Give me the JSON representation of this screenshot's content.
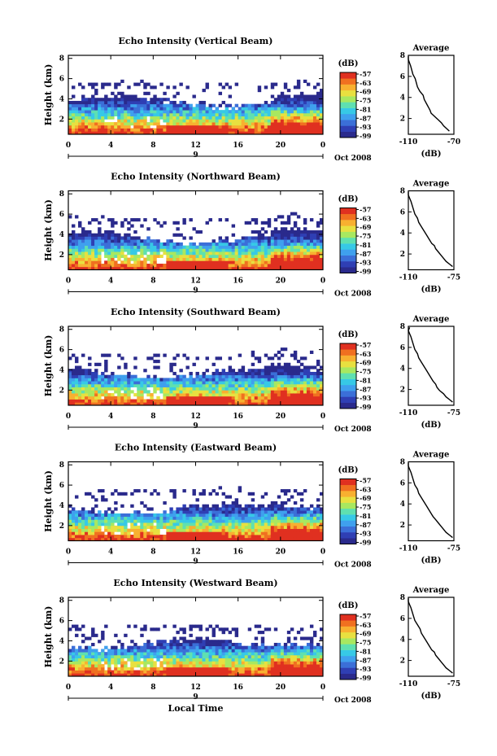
{
  "chart_data": [
    {
      "type": "heatmap",
      "title": "Echo Intensity (Vertical Beam)",
      "ylabel": "Height (km)",
      "xlabel": "",
      "x_ticks": [
        "0",
        "4",
        "8",
        "12",
        "16",
        "20",
        "0"
      ],
      "y_ticks": [
        "2",
        "4",
        "6",
        "8"
      ],
      "date_mark": "9",
      "date_label": "Oct 2008",
      "colorbar": {
        "title": "(dB)",
        "ticks": [
          "-57",
          "-63",
          "-69",
          "-75",
          "-81",
          "-87",
          "-93",
          "-99"
        ]
      },
      "average_profile": {
        "title": "Average",
        "xlabel": "(dB)",
        "x_ticks": [
          "-110",
          "-70"
        ],
        "xlim": [
          -110,
          -70
        ],
        "y_ticks": [
          "2",
          "4",
          "6",
          "8"
        ],
        "ylim": [
          0.5,
          8
        ],
        "x": [
          -74,
          -76,
          -79,
          -81,
          -84,
          -87,
          -90,
          -91,
          -92,
          -94,
          -96,
          -97,
          -100,
          -102,
          -103,
          -104,
          -106,
          -107,
          -108,
          -109,
          -110,
          -110
        ],
        "y": [
          0.8,
          1.0,
          1.3,
          1.6,
          1.9,
          2.2,
          2.5,
          2.8,
          3.0,
          3.4,
          3.8,
          4.2,
          4.6,
          5.0,
          5.4,
          5.8,
          6.2,
          6.6,
          7.0,
          7.3,
          7.6,
          7.9
        ]
      }
    },
    {
      "type": "heatmap",
      "title": "Echo Intensity (Northward Beam)",
      "ylabel": "Height (km)",
      "xlabel": "",
      "x_ticks": [
        "0",
        "4",
        "8",
        "12",
        "16",
        "20",
        "0"
      ],
      "y_ticks": [
        "2",
        "4",
        "6",
        "8"
      ],
      "date_mark": "9",
      "date_label": "Oct 2008",
      "colorbar": {
        "title": "(dB)",
        "ticks": [
          "-57",
          "-63",
          "-69",
          "-75",
          "-81",
          "-87",
          "-93",
          "-99"
        ]
      },
      "average_profile": {
        "title": "Average",
        "xlabel": "(dB)",
        "x_ticks": [
          "-110",
          "-75"
        ],
        "xlim": [
          -110,
          -75
        ],
        "y_ticks": [
          "2",
          "4",
          "6",
          "8"
        ],
        "ylim": [
          0.5,
          8
        ],
        "x": [
          -76,
          -78,
          -81,
          -83,
          -85,
          -87,
          -89,
          -90,
          -92,
          -94,
          -96,
          -98,
          -100,
          -102,
          -103,
          -105,
          -106,
          -107,
          -108,
          -109,
          -110,
          -110
        ],
        "y": [
          0.8,
          1.0,
          1.3,
          1.6,
          1.9,
          2.2,
          2.5,
          2.8,
          3.0,
          3.4,
          3.8,
          4.2,
          4.6,
          5.0,
          5.4,
          5.8,
          6.2,
          6.6,
          7.0,
          7.3,
          7.6,
          7.9
        ]
      }
    },
    {
      "type": "heatmap",
      "title": "Echo Intensity (Southward Beam)",
      "ylabel": "Height (km)",
      "xlabel": "",
      "x_ticks": [
        "0",
        "4",
        "8",
        "12",
        "16",
        "20",
        "0"
      ],
      "y_ticks": [
        "2",
        "4",
        "6",
        "8"
      ],
      "date_mark": "9",
      "date_label": "Oct 2008",
      "colorbar": {
        "title": "(dB)",
        "ticks": [
          "-57",
          "-63",
          "-69",
          "-75",
          "-81",
          "-87",
          "-93",
          "-99"
        ]
      },
      "average_profile": {
        "title": "Average",
        "xlabel": "(dB)",
        "x_ticks": [
          "-110",
          "-75"
        ],
        "xlim": [
          -110,
          -75
        ],
        "y_ticks": [
          "2",
          "4",
          "6",
          "8"
        ],
        "ylim": [
          0.5,
          8
        ],
        "x": [
          -76,
          -78,
          -81,
          -83,
          -86,
          -88,
          -89,
          -91,
          -92,
          -94,
          -96,
          -98,
          -100,
          -102,
          -103,
          -105,
          -106,
          -107,
          -108,
          -109,
          -110,
          -109
        ],
        "y": [
          0.8,
          1.0,
          1.3,
          1.6,
          1.9,
          2.2,
          2.5,
          2.8,
          3.0,
          3.4,
          3.8,
          4.2,
          4.6,
          5.0,
          5.4,
          5.8,
          6.2,
          6.6,
          7.0,
          7.3,
          7.6,
          7.9
        ]
      }
    },
    {
      "type": "heatmap",
      "title": "Echo Intensity (Eastward Beam)",
      "ylabel": "Height (km)",
      "xlabel": "",
      "x_ticks": [
        "0",
        "4",
        "8",
        "12",
        "16",
        "20",
        "0"
      ],
      "y_ticks": [
        "2",
        "4",
        "6",
        "8"
      ],
      "date_mark": "9",
      "date_label": "Oct 2008",
      "colorbar": {
        "title": "(dB)",
        "ticks": [
          "-57",
          "-63",
          "-69",
          "-75",
          "-81",
          "-87",
          "-93",
          "-99"
        ]
      },
      "average_profile": {
        "title": "Average",
        "xlabel": "(dB)",
        "x_ticks": [
          "-110",
          "-75"
        ],
        "xlim": [
          -110,
          -75
        ],
        "y_ticks": [
          "2",
          "4",
          "6",
          "8"
        ],
        "ylim": [
          0.5,
          8
        ],
        "x": [
          -76,
          -78,
          -81,
          -83,
          -85,
          -87,
          -89,
          -91,
          -92,
          -94,
          -96,
          -98,
          -100,
          -102,
          -103,
          -105,
          -106,
          -107,
          -108,
          -109,
          -110,
          -110
        ],
        "y": [
          0.8,
          1.0,
          1.3,
          1.6,
          1.9,
          2.2,
          2.5,
          2.8,
          3.0,
          3.4,
          3.8,
          4.2,
          4.6,
          5.0,
          5.4,
          5.8,
          6.2,
          6.6,
          7.0,
          7.3,
          7.6,
          7.9
        ]
      }
    },
    {
      "type": "heatmap",
      "title": "Echo Intensity (Westward Beam)",
      "ylabel": "Height (km)",
      "xlabel": "Local Time",
      "x_ticks": [
        "0",
        "4",
        "8",
        "12",
        "16",
        "20",
        "0"
      ],
      "y_ticks": [
        "2",
        "4",
        "6",
        "8"
      ],
      "date_mark": "9",
      "date_label": "Oct 2008",
      "colorbar": {
        "title": "(dB)",
        "ticks": [
          "-57",
          "-63",
          "-69",
          "-75",
          "-81",
          "-87",
          "-93",
          "-99"
        ]
      },
      "average_profile": {
        "title": "Average",
        "xlabel": "(dB)",
        "x_ticks": [
          "-110",
          "-75"
        ],
        "xlim": [
          -110,
          -75
        ],
        "y_ticks": [
          "2",
          "4",
          "6",
          "8"
        ],
        "ylim": [
          0.5,
          8
        ],
        "x": [
          -76,
          -78,
          -81,
          -83,
          -85,
          -87,
          -89,
          -90,
          -92,
          -94,
          -96,
          -98,
          -100,
          -101,
          -103,
          -105,
          -106,
          -107,
          -108,
          -109,
          -110,
          -110
        ],
        "y": [
          0.8,
          1.0,
          1.3,
          1.6,
          1.9,
          2.2,
          2.5,
          2.8,
          3.0,
          3.4,
          3.8,
          4.2,
          4.6,
          5.0,
          5.4,
          5.8,
          6.2,
          6.6,
          7.0,
          7.3,
          7.6,
          7.9
        ]
      }
    }
  ],
  "colors": {
    "colormap": [
      "#2a2a8c",
      "#2f3fb4",
      "#3b6fd8",
      "#3fa0ee",
      "#37c9e6",
      "#5fe0b0",
      "#a8e860",
      "#e8e040",
      "#f8b030",
      "#f07020",
      "#e03020"
    ]
  }
}
